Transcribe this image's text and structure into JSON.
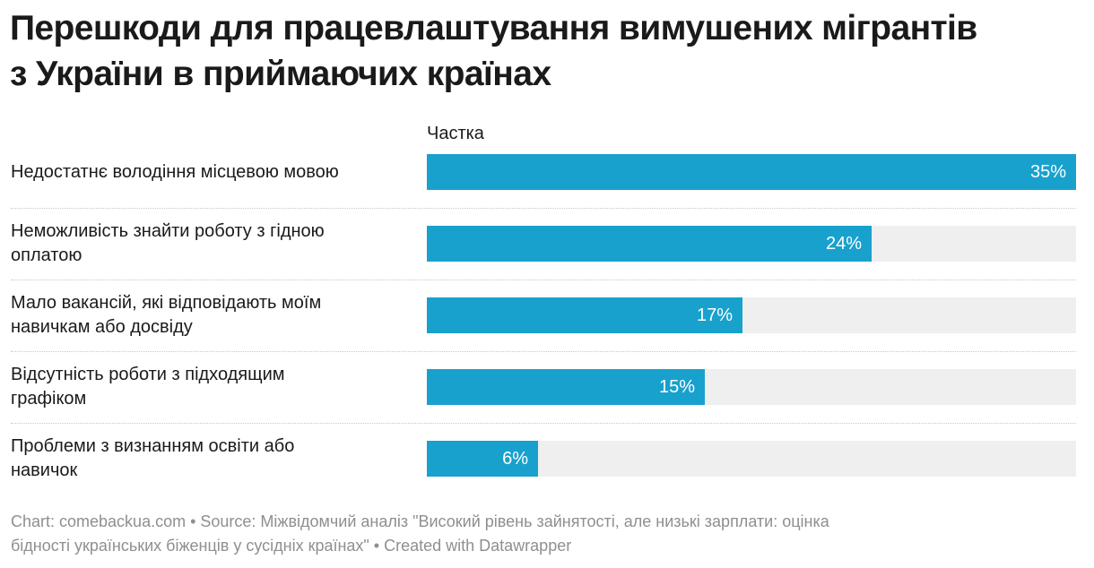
{
  "title": {
    "line1": "Перешкоди для працевлаштування вимушених мігрантів",
    "line2": "з України в приймаючих країнах"
  },
  "colors": {
    "bar": "#18a1cd",
    "track": "#efefef",
    "value_text": "#ffffff"
  },
  "chart_data": {
    "type": "bar",
    "orientation": "horizontal",
    "value_header": "Частка",
    "categories": [
      "Недостатнє володіння місцевою мовою",
      "Неможливість знайти роботу з гідною оплатою",
      "Мало вакансій, які відповідають моїм навичкам або досвіду",
      "Відсутність роботи з підходящим графіком",
      "Проблеми з визнанням освіти або навичок"
    ],
    "label_lines": [
      [
        "Недостатнє володіння місцевою мовою"
      ],
      [
        "Неможливість знайти роботу з гідною",
        "оплатою"
      ],
      [
        "Мало вакансій, які відповідають моїм",
        "навичкам або досвіду"
      ],
      [
        "Відсутність роботи з підходящим",
        "графіком"
      ],
      [
        "Проблеми з визнанням освіти або",
        "навичок"
      ]
    ],
    "values": [
      35,
      24,
      17,
      15,
      6
    ],
    "value_labels": [
      "35%",
      "24%",
      "17%",
      "15%",
      "6%"
    ],
    "xlim": [
      0,
      35
    ],
    "grid": false,
    "legend": "none"
  },
  "footer": {
    "line1": "Chart: comebackua.com • Source: Міжвідомчий аналіз \"Високий рівень зайнятості, але низькі зарплати: оцінка",
    "line2": "бідності українських біженців у сусідніх країнах\" • Created with Datawrapper"
  }
}
